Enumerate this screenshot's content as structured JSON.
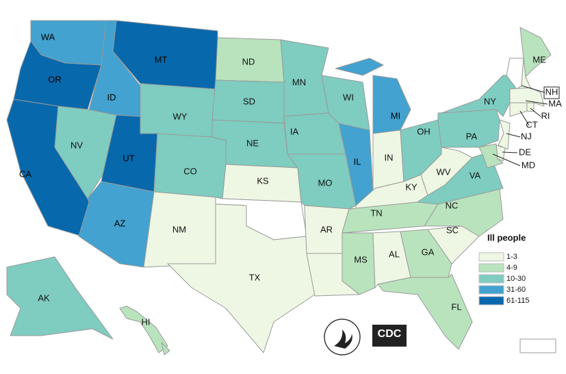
{
  "title": "Ill people",
  "legend": [
    {
      "label": "1-3",
      "color": "#eef7e3"
    },
    {
      "label": "4-9",
      "color": "#b9e3bd"
    },
    {
      "label": "10-30",
      "color": "#7fccc0"
    },
    {
      "label": "31-60",
      "color": "#43a2cf"
    },
    {
      "label": "61-115",
      "color": "#0868ac"
    }
  ],
  "no_data_color": "#ffffff",
  "logo": "CDC",
  "states": [
    {
      "label": "WA",
      "class": 3
    },
    {
      "label": "OR",
      "class": 4
    },
    {
      "label": "CA",
      "class": 4
    },
    {
      "label": "NV",
      "class": 2
    },
    {
      "label": "ID",
      "class": 3
    },
    {
      "label": "MT",
      "class": 4
    },
    {
      "label": "WY",
      "class": 2
    },
    {
      "label": "UT",
      "class": 4
    },
    {
      "label": "CO",
      "class": 2
    },
    {
      "label": "AZ",
      "class": 3
    },
    {
      "label": "NM",
      "class": 0
    },
    {
      "label": "ND",
      "class": 1
    },
    {
      "label": "SD",
      "class": 2
    },
    {
      "label": "NE",
      "class": 2
    },
    {
      "label": "KS",
      "class": 0
    },
    {
      "label": null,
      "class": null
    },
    {
      "label": "TX",
      "class": 0
    },
    {
      "label": "MN",
      "class": 2
    },
    {
      "label": "IA",
      "class": 2
    },
    {
      "label": "MO",
      "class": 2
    },
    {
      "label": "AR",
      "class": 0
    },
    {
      "label": null,
      "class": 0
    },
    {
      "label": "WI",
      "class": 2
    },
    {
      "label": "IL",
      "class": 3
    },
    {
      "label": "MI",
      "class": 3
    },
    {
      "label": "IN",
      "class": 0
    },
    {
      "label": "KY",
      "class": 0
    },
    {
      "label": "TN",
      "class": 1
    },
    {
      "label": "MS",
      "class": 1
    },
    {
      "label": "AL",
      "class": 0
    },
    {
      "label": "GA",
      "class": 1
    },
    {
      "label": "FL",
      "class": 1
    },
    {
      "label": "SC",
      "class": 0
    },
    {
      "label": "NC",
      "class": 1
    },
    {
      "label": "VA",
      "class": 2
    },
    {
      "label": "WV",
      "class": 0
    },
    {
      "label": "OH",
      "class": 2
    },
    {
      "label": "PA",
      "class": 2
    },
    {
      "label": "NY",
      "class": 2
    },
    {
      "label": "ME",
      "class": 1
    },
    {
      "label": null,
      "class": null
    },
    {
      "label": "NH",
      "class": 0
    },
    {
      "label": "MA",
      "class": 0
    },
    {
      "label": "RI",
      "class": 0
    },
    {
      "label": "CT",
      "class": 0
    },
    {
      "label": "NJ",
      "class": 0
    },
    {
      "label": "DE",
      "class": 0
    },
    {
      "label": "MD",
      "class": 1
    },
    {
      "label": "AK",
      "class": 2
    },
    {
      "label": "HI",
      "class": 1
    },
    {
      "label": null,
      "class": null
    }
  ]
}
